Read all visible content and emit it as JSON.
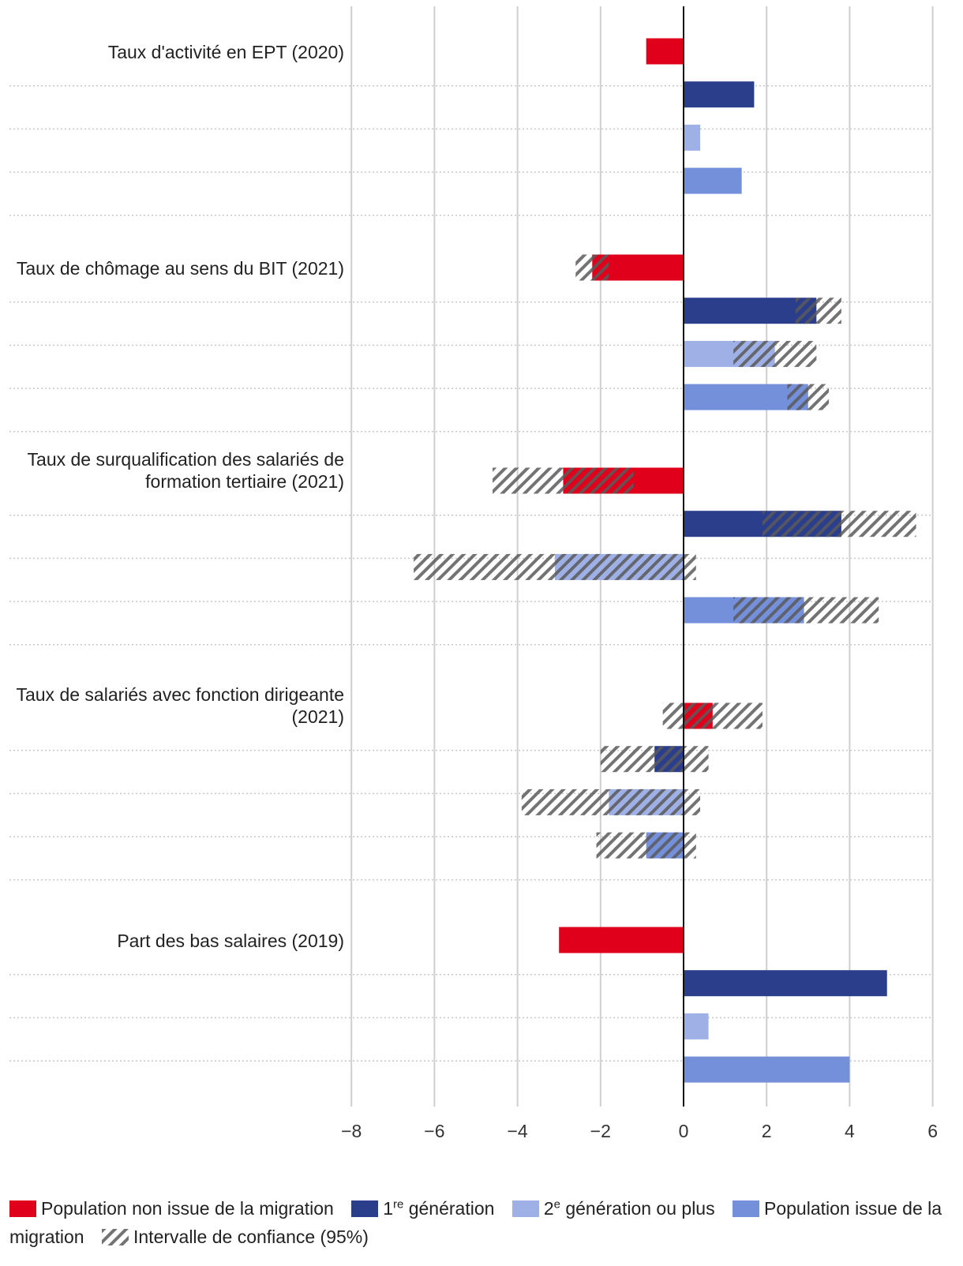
{
  "chart_data": {
    "type": "bar",
    "orientation": "horizontal",
    "xlim": [
      -8,
      6
    ],
    "xticks": [
      "−8",
      "−6",
      "−4",
      "−2",
      "0",
      "2",
      "4",
      "6"
    ],
    "xtick_values": [
      -8,
      -6,
      -4,
      -2,
      0,
      2,
      4,
      6
    ],
    "groups": [
      {
        "label": "Taux d'activité en EPT (2020)",
        "bars": [
          {
            "series": "non_migration",
            "value": -0.9,
            "ci": null
          },
          {
            "series": "gen1",
            "value": 1.7,
            "ci": null
          },
          {
            "series": "gen2",
            "value": 0.4,
            "ci": null
          },
          {
            "series": "migration",
            "value": 1.4,
            "ci": null
          }
        ]
      },
      {
        "label": "Taux de chômage au sens du BIT (2021)",
        "bars": [
          {
            "series": "non_migration",
            "value": -2.2,
            "ci": [
              -2.6,
              -1.8
            ]
          },
          {
            "series": "gen1",
            "value": 3.2,
            "ci": [
              2.7,
              3.8
            ]
          },
          {
            "series": "gen2",
            "value": 2.2,
            "ci": [
              1.2,
              3.2
            ]
          },
          {
            "series": "migration",
            "value": 3.0,
            "ci": [
              2.5,
              3.5
            ]
          }
        ]
      },
      {
        "label": "Taux de surqualification des salariés de formation tertiaire (2021)",
        "label_lines": [
          "Taux de surqualification des salariés de",
          "formation tertiaire (2021)"
        ],
        "bars": [
          {
            "series": "non_migration",
            "value": -2.9,
            "ci": [
              -4.6,
              -1.2
            ]
          },
          {
            "series": "gen1",
            "value": 3.8,
            "ci": [
              1.9,
              5.6
            ]
          },
          {
            "series": "gen2",
            "value": -3.1,
            "ci": [
              -6.5,
              0.3
            ]
          },
          {
            "series": "migration",
            "value": 2.9,
            "ci": [
              1.2,
              4.7
            ]
          }
        ]
      },
      {
        "label": "Taux de salariés avec fonction dirigeante (2021)",
        "label_lines": [
          "Taux de salariés avec fonction dirigeante",
          "(2021)"
        ],
        "bars": [
          {
            "series": "non_migration",
            "value": 0.7,
            "ci": [
              -0.5,
              1.9
            ]
          },
          {
            "series": "gen1",
            "value": -0.7,
            "ci": [
              -2.0,
              0.6
            ]
          },
          {
            "series": "gen2",
            "value": -1.8,
            "ci": [
              -3.9,
              0.4
            ]
          },
          {
            "series": "migration",
            "value": -0.9,
            "ci": [
              -2.1,
              0.3
            ]
          }
        ]
      },
      {
        "label": "Part des bas salaires (2019)",
        "bars": [
          {
            "series": "non_migration",
            "value": -3.0,
            "ci": null
          },
          {
            "series": "gen1",
            "value": 4.9,
            "ci": null
          },
          {
            "series": "gen2",
            "value": 0.6,
            "ci": null
          },
          {
            "series": "migration",
            "value": 4.0,
            "ci": null
          }
        ]
      }
    ],
    "series": [
      {
        "key": "non_migration",
        "name": "Population non issue de la migration",
        "color": "#e0001b"
      },
      {
        "key": "gen1",
        "name_prefix": "1",
        "name_sup": "re",
        "name_suffix": " génération",
        "color": "#2b3e8c"
      },
      {
        "key": "gen2",
        "name_prefix": "2",
        "name_sup": "e",
        "name_suffix": " génération ou plus",
        "color": "#9fb0e6"
      },
      {
        "key": "migration",
        "name": "Population issue de la migration",
        "color": "#7590db"
      }
    ],
    "ci_legend": "Intervalle de confiance (95%)",
    "legend_position": "bottom"
  }
}
